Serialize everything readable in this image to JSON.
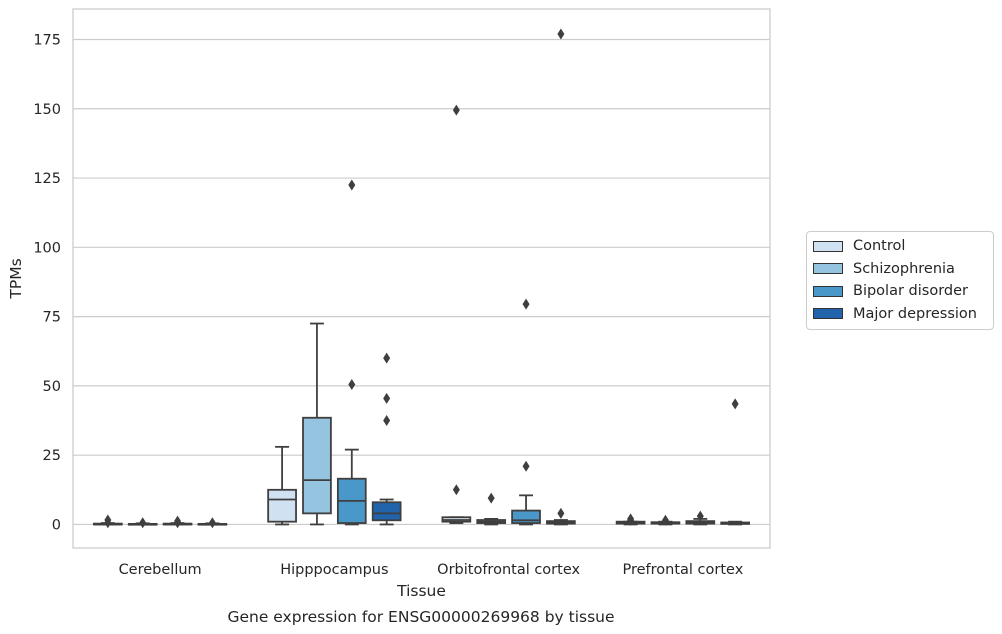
{
  "chart_data": {
    "type": "boxplot",
    "title": "Gene expression for ENSG00000269968 by tissue",
    "xlabel": "Tissue",
    "ylabel": "TPMs",
    "ylim": [
      -8.5,
      186
    ],
    "yticks": [
      0,
      25,
      50,
      75,
      100,
      125,
      150,
      175
    ],
    "grid": "horizontal",
    "legend_position": "right",
    "categories": [
      "Cerebellum",
      "Hipppocampus",
      "Orbitofrontal cortex",
      "Prefrontal cortex"
    ],
    "series": [
      {
        "name": "Control",
        "color": "#d0e1f2",
        "boxes": [
          {
            "whislo": 0,
            "q1": 0,
            "med": 0,
            "q3": 0.3,
            "whishi": 0.5,
            "fliers": [
              0.6,
              1.6
            ]
          },
          {
            "whislo": 0,
            "q1": 1,
            "med": 9,
            "q3": 12.5,
            "whishi": 28,
            "fliers": []
          },
          {
            "whislo": 0.5,
            "q1": 1,
            "med": 1.6,
            "q3": 2.6,
            "whishi": 2.6,
            "fliers": [
              12.5,
              149.5
            ]
          },
          {
            "whislo": 0,
            "q1": 0.3,
            "med": 0.5,
            "q3": 1,
            "whishi": 1,
            "fliers": [
              1.5,
              2
            ]
          }
        ]
      },
      {
        "name": "Schizophrenia",
        "color": "#94c4df",
        "boxes": [
          {
            "whislo": 0,
            "q1": 0,
            "med": 0,
            "q3": 0.2,
            "whishi": 0.4,
            "fliers": [
              0.6
            ]
          },
          {
            "whislo": 0,
            "q1": 4,
            "med": 16,
            "q3": 38.5,
            "whishi": 72.5,
            "fliers": []
          },
          {
            "whislo": 0,
            "q1": 0.5,
            "med": 1,
            "q3": 1.6,
            "whishi": 2,
            "fliers": [
              9.5
            ]
          },
          {
            "whislo": 0,
            "q1": 0.3,
            "med": 0.5,
            "q3": 0.8,
            "whishi": 1,
            "fliers": [
              1.5
            ]
          }
        ]
      },
      {
        "name": "Bipolar disorder",
        "color": "#4a98c9",
        "boxes": [
          {
            "whislo": 0,
            "q1": 0,
            "med": 0,
            "q3": 0.3,
            "whishi": 0.5,
            "fliers": [
              0.6,
              1.2
            ]
          },
          {
            "whislo": 0,
            "q1": 0.5,
            "med": 8.5,
            "q3": 16.5,
            "whishi": 27,
            "fliers": [
              50.5,
              122.5
            ]
          },
          {
            "whislo": 0,
            "q1": 0.5,
            "med": 1.5,
            "q3": 5,
            "whishi": 10.5,
            "fliers": [
              21,
              79.5
            ]
          },
          {
            "whislo": 0,
            "q1": 0.3,
            "med": 0.6,
            "q3": 1.2,
            "whishi": 2,
            "fliers": [
              3
            ]
          }
        ]
      },
      {
        "name": "Major depression",
        "color": "#2164ab",
        "boxes": [
          {
            "whislo": 0,
            "q1": 0,
            "med": 0,
            "q3": 0.2,
            "whishi": 0.4,
            "fliers": [
              0.6
            ]
          },
          {
            "whislo": 0,
            "q1": 1.5,
            "med": 4,
            "q3": 8,
            "whishi": 9,
            "fliers": [
              37.5,
              45.5,
              60
            ]
          },
          {
            "whislo": 0,
            "q1": 0.3,
            "med": 0.6,
            "q3": 1.2,
            "whishi": 1.6,
            "fliers": [
              4,
              177
            ]
          },
          {
            "whislo": 0,
            "q1": 0.2,
            "med": 0.4,
            "q3": 0.7,
            "whishi": 1,
            "fliers": [
              43.5
            ]
          }
        ]
      }
    ]
  }
}
